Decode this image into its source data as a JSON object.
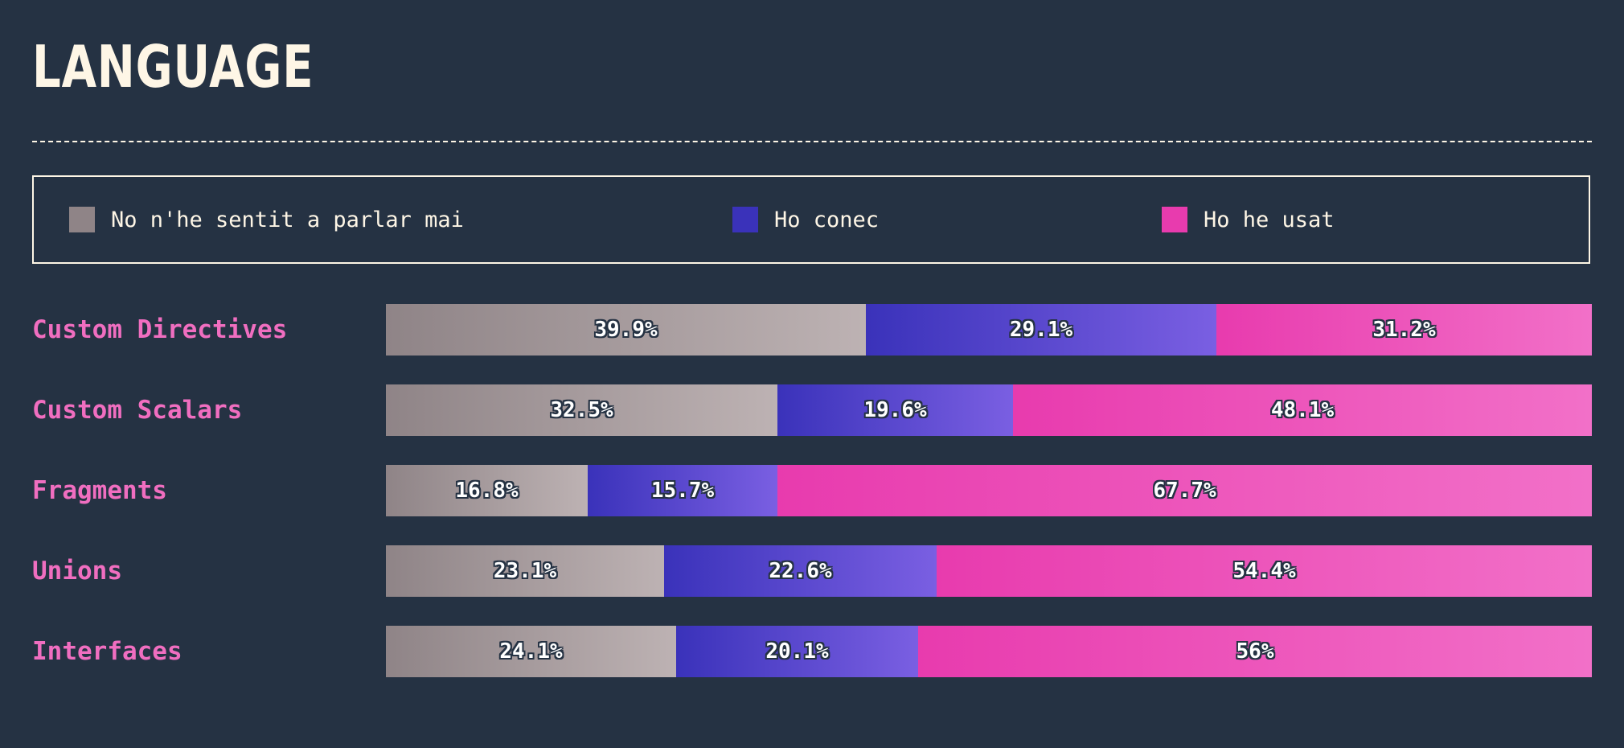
{
  "title": "LANGUAGE",
  "legend": [
    {
      "label": "No n'he sentit a parlar mai",
      "color": "#8f8487"
    },
    {
      "label": "Ho conec",
      "color": "#3a32ba"
    },
    {
      "label": "Ho he usat",
      "color": "#e83bae"
    }
  ],
  "chart_data": {
    "type": "bar",
    "stacked": true,
    "orientation": "horizontal",
    "title": "LANGUAGE",
    "unit": "%",
    "categories": [
      "Custom Directives",
      "Custom Scalars",
      "Fragments",
      "Unions",
      "Interfaces"
    ],
    "series": [
      {
        "name": "No n'he sentit a parlar mai",
        "values": [
          39.9,
          32.5,
          16.8,
          23.1,
          24.1
        ],
        "labels": [
          "39.9%",
          "32.5%",
          "16.8%",
          "23.1%",
          "24.1%"
        ],
        "gradient": [
          "#8f8487",
          "#bdb2b3"
        ]
      },
      {
        "name": "Ho conec",
        "values": [
          29.1,
          19.6,
          15.7,
          22.6,
          20.1
        ],
        "labels": [
          "29.1%",
          "19.6%",
          "15.7%",
          "22.6%",
          "20.1%"
        ],
        "gradient": [
          "#3a32ba",
          "#7a5fe2"
        ]
      },
      {
        "name": "Ho he usat",
        "values": [
          31.2,
          48.1,
          67.7,
          54.4,
          56
        ],
        "labels": [
          "31.2%",
          "48.1%",
          "67.7%",
          "54.4%",
          "56%"
        ],
        "gradient": [
          "#e83bae",
          "#f270c8"
        ]
      }
    ]
  }
}
